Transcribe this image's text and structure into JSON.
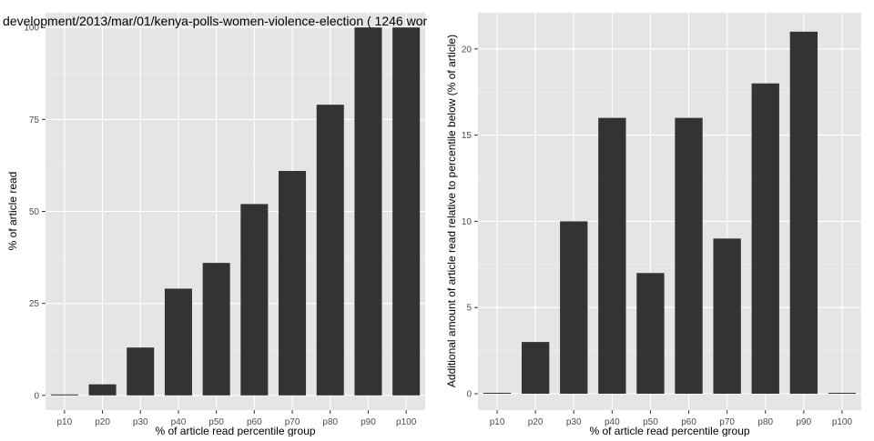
{
  "colors": {
    "panel_background": "#e5e5e5",
    "gridline": "#ffffff",
    "bar_fill": "#333333",
    "tick_label": "#4d4d4d",
    "text": "#000000"
  },
  "chart_data": [
    {
      "type": "bar",
      "title": "development/2013/mar/01/kenya-polls-women-violence-election ( 1246 wor",
      "xlabel": "% of article read percentile group",
      "ylabel": "% of article read",
      "categories": [
        "p10",
        "p20",
        "p30",
        "p40",
        "p50",
        "p60",
        "p70",
        "p80",
        "p90",
        "p100"
      ],
      "values": [
        0,
        3,
        13,
        29,
        36,
        52,
        61,
        79,
        100,
        100
      ],
      "ylim": [
        -4,
        104
      ],
      "yticks": [
        0,
        25,
        50,
        75,
        100
      ],
      "grid": true,
      "legend": "none"
    },
    {
      "type": "bar",
      "title": "",
      "xlabel": "% of article read percentile group",
      "ylabel": "Additional amount of article read relative to percentile below (% of article)",
      "categories": [
        "p10",
        "p20",
        "p30",
        "p40",
        "p50",
        "p60",
        "p70",
        "p80",
        "p90",
        "p100"
      ],
      "values": [
        0,
        3,
        10,
        16,
        7,
        16,
        9,
        18,
        21,
        0
      ],
      "ylim": [
        -0.95,
        22.1
      ],
      "yticks": [
        0,
        5,
        10,
        15,
        20
      ],
      "grid": true,
      "legend": "none"
    }
  ]
}
